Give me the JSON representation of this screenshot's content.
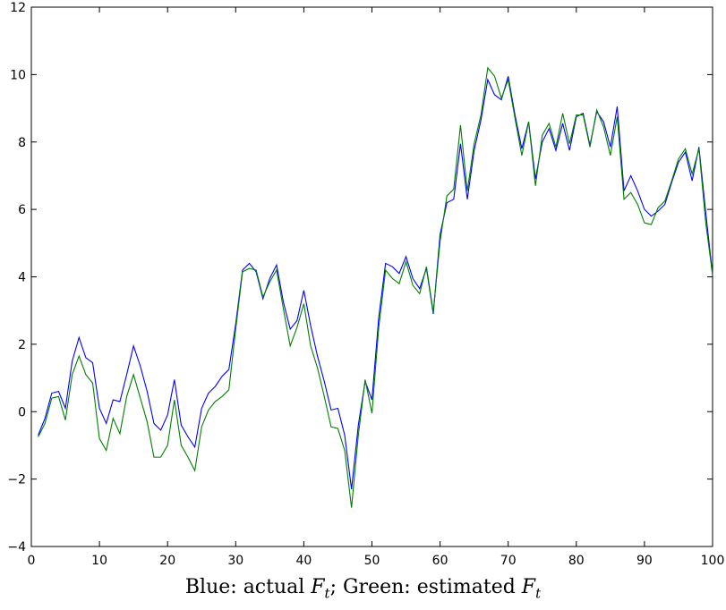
{
  "chart_data": {
    "type": "line",
    "caption": {
      "prefix_blue": "Blue: actual ",
      "sep": "; ",
      "prefix_green": "Green: estimated ",
      "symbol": "F",
      "subscript": "t"
    },
    "xlim": [
      0,
      100
    ],
    "ylim": [
      -4,
      12
    ],
    "x_ticks": [
      0,
      10,
      20,
      30,
      40,
      50,
      60,
      70,
      80,
      90,
      100
    ],
    "y_ticks": [
      -4,
      -2,
      0,
      2,
      4,
      6,
      8,
      10,
      12
    ],
    "x_tick_labels": [
      "0",
      "10",
      "20",
      "30",
      "40",
      "50",
      "60",
      "70",
      "80",
      "90",
      "100"
    ],
    "y_tick_labels": [
      "−4",
      "−2",
      "0",
      "2",
      "4",
      "6",
      "8",
      "10",
      "12"
    ],
    "grid": false,
    "series": [
      {
        "color": "#0000ff",
        "x": [
          1,
          2,
          3,
          4,
          5,
          6,
          7,
          8,
          9,
          10,
          11,
          12,
          13,
          14,
          15,
          16,
          17,
          18,
          19,
          20,
          21,
          22,
          23,
          24,
          25,
          26,
          27,
          28,
          29,
          30,
          31,
          32,
          33,
          34,
          35,
          36,
          37,
          38,
          39,
          40,
          41,
          42,
          43,
          44,
          45,
          46,
          47,
          48,
          49,
          50,
          51,
          52,
          53,
          54,
          55,
          56,
          57,
          58,
          59,
          60,
          61,
          62,
          63,
          64,
          65,
          66,
          67,
          68,
          69,
          70,
          71,
          72,
          73,
          74,
          75,
          76,
          77,
          78,
          79,
          80,
          81,
          82,
          83,
          84,
          85,
          86,
          87,
          88,
          89,
          90,
          91,
          92,
          93,
          94,
          95,
          96,
          97,
          98,
          99,
          100
        ],
        "values": [
          -0.7,
          -0.2,
          0.55,
          0.6,
          0.1,
          1.5,
          2.2,
          1.6,
          1.45,
          0.1,
          -0.35,
          0.35,
          0.3,
          1.1,
          1.95,
          1.35,
          0.6,
          -0.35,
          -0.55,
          -0.1,
          0.95,
          -0.4,
          -0.75,
          -1.05,
          0.1,
          0.55,
          0.75,
          1.05,
          1.25,
          2.6,
          4.2,
          4.4,
          4.15,
          3.35,
          3.95,
          4.35,
          3.25,
          2.45,
          2.7,
          3.6,
          2.55,
          1.65,
          0.9,
          0.05,
          0.1,
          -0.7,
          -2.3,
          -0.4,
          0.9,
          0.35,
          2.8,
          4.4,
          4.3,
          4.1,
          4.6,
          3.95,
          3.65,
          4.25,
          2.9,
          5.25,
          6.2,
          6.3,
          7.95,
          6.3,
          7.75,
          8.65,
          9.85,
          9.4,
          9.25,
          9.95,
          8.8,
          7.8,
          8.6,
          6.9,
          8.0,
          8.4,
          7.75,
          8.55,
          7.75,
          8.75,
          8.85,
          7.9,
          8.9,
          8.6,
          7.85,
          9.05,
          6.55,
          7.0,
          6.55,
          6.0,
          5.8,
          5.95,
          6.15,
          6.8,
          7.4,
          7.7,
          6.85,
          7.85,
          5.9,
          4.05
        ]
      },
      {
        "color": "#007f00",
        "x": [
          1,
          2,
          3,
          4,
          5,
          6,
          7,
          8,
          9,
          10,
          11,
          12,
          13,
          14,
          15,
          16,
          17,
          18,
          19,
          20,
          21,
          22,
          23,
          24,
          25,
          26,
          27,
          28,
          29,
          30,
          31,
          32,
          33,
          34,
          35,
          36,
          37,
          38,
          39,
          40,
          41,
          42,
          43,
          44,
          45,
          46,
          47,
          48,
          49,
          50,
          51,
          52,
          53,
          54,
          55,
          56,
          57,
          58,
          59,
          60,
          61,
          62,
          63,
          64,
          65,
          66,
          67,
          68,
          69,
          70,
          71,
          72,
          73,
          74,
          75,
          76,
          77,
          78,
          79,
          80,
          81,
          82,
          83,
          84,
          85,
          86,
          87,
          88,
          89,
          90,
          91,
          92,
          93,
          94,
          95,
          96,
          97,
          98,
          99,
          100
        ],
        "values": [
          -0.75,
          -0.35,
          0.4,
          0.45,
          -0.25,
          1.1,
          1.65,
          1.1,
          0.85,
          -0.8,
          -1.15,
          -0.2,
          -0.65,
          0.45,
          1.1,
          0.4,
          -0.3,
          -1.35,
          -1.35,
          -1.0,
          0.35,
          -1.0,
          -1.35,
          -1.75,
          -0.45,
          0.05,
          0.3,
          0.45,
          0.65,
          2.45,
          4.15,
          4.25,
          4.2,
          3.4,
          3.85,
          4.2,
          3.05,
          1.95,
          2.5,
          3.2,
          1.95,
          1.3,
          0.45,
          -0.45,
          -0.5,
          -1.15,
          -2.85,
          -0.7,
          0.95,
          -0.05,
          2.5,
          4.2,
          3.95,
          3.8,
          4.45,
          3.75,
          3.5,
          4.3,
          2.95,
          5.05,
          6.4,
          6.6,
          8.5,
          6.55,
          7.95,
          8.8,
          10.2,
          9.95,
          9.3,
          9.85,
          8.7,
          7.6,
          8.6,
          6.7,
          8.2,
          8.55,
          7.85,
          8.85,
          7.95,
          8.8,
          8.8,
          7.85,
          8.95,
          8.45,
          7.6,
          8.75,
          6.3,
          6.5,
          6.15,
          5.6,
          5.55,
          6.05,
          6.25,
          6.85,
          7.5,
          7.8,
          7.05,
          7.8,
          5.6,
          4.05
        ]
      }
    ]
  }
}
